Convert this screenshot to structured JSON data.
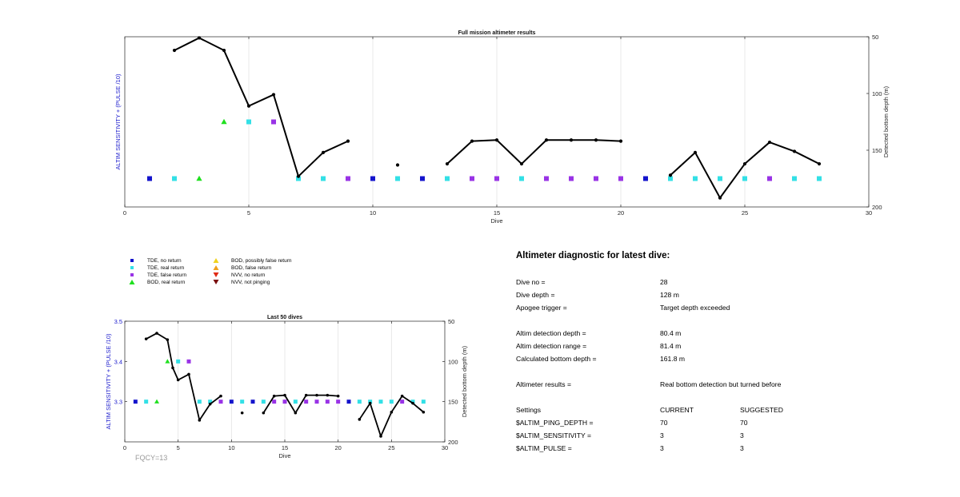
{
  "chart_data": [
    {
      "type": "scatter",
      "title": "Full mission altimeter results",
      "xlabel": "Dive",
      "ylabel_left": "ALTIM SENSITIVITY + (PULSE /10)",
      "ylabel_right": "Detected bottom depth (m)",
      "xlim": [
        0,
        30
      ],
      "xticks": [
        0,
        5,
        10,
        15,
        20,
        25,
        30
      ],
      "ylim_left": [
        3.25,
        3.55
      ],
      "ylim_right": [
        200,
        50
      ],
      "yticks_right": [
        50,
        100,
        150,
        200
      ],
      "grid": "x",
      "left_tick_labels": false,
      "series": [
        {
          "name": "TDE, no return",
          "color": "#1414cc",
          "marker": "square",
          "x": [
            1,
            10,
            12,
            21
          ],
          "y": [
            3.3,
            3.3,
            3.3,
            3.3
          ]
        },
        {
          "name": "TDE, real return",
          "color": "#33e0e6",
          "marker": "square",
          "x": [
            2,
            5,
            7,
            8,
            11,
            13,
            16,
            22,
            23,
            24,
            25,
            27,
            28
          ],
          "y": [
            3.3,
            3.4,
            3.3,
            3.3,
            3.3,
            3.3,
            3.3,
            3.3,
            3.3,
            3.3,
            3.3,
            3.3,
            3.3
          ]
        },
        {
          "name": "TDE, false return",
          "color": "#9933e6",
          "marker": "square",
          "x": [
            6,
            9,
            14,
            15,
            17,
            18,
            19,
            20,
            26
          ],
          "y": [
            3.4,
            3.3,
            3.3,
            3.3,
            3.3,
            3.3,
            3.3,
            3.3,
            3.3
          ]
        },
        {
          "name": "BOD, real return",
          "color": "#1fe01f",
          "marker": "triangle-up",
          "x": [
            3,
            4
          ],
          "y": [
            3.3,
            3.4
          ]
        }
      ],
      "bottom_depth": [
        {
          "x": [
            2,
            3,
            4,
            5,
            6,
            7,
            8,
            9
          ],
          "y": [
            62,
            51,
            62,
            111,
            101,
            173,
            152,
            142
          ]
        },
        {
          "x": [
            11
          ],
          "y": [
            163
          ]
        },
        {
          "x": [
            13,
            14,
            15,
            16,
            17,
            18,
            19,
            20
          ],
          "y": [
            162,
            142,
            141,
            162,
            141,
            141,
            141,
            142
          ]
        },
        {
          "x": [
            22,
            23,
            24,
            25,
            26,
            27,
            28
          ],
          "y": [
            172,
            152,
            192,
            162,
            143,
            151,
            162
          ]
        }
      ]
    },
    {
      "type": "scatter",
      "title": "Last 50 dives",
      "xlabel": "Dive",
      "ylabel_left": "ALTIM SENSITIVITY + (PULSE /10)",
      "ylabel_right": "Detected bottom depth (m)",
      "xlim": [
        0,
        30
      ],
      "xticks": [
        0,
        5,
        10,
        15,
        20,
        25,
        30
      ],
      "ylim_left": [
        3.2,
        3.5
      ],
      "yticks_left": [
        3.3,
        3.4,
        3.5
      ],
      "ylim_right": [
        200,
        50
      ],
      "yticks_right": [
        50,
        100,
        150,
        200
      ],
      "grid": "x",
      "left_tick_labels": true,
      "series": [
        {
          "name": "TDE, no return",
          "color": "#1414cc",
          "marker": "square",
          "x": [
            1,
            10,
            12,
            21
          ],
          "y": [
            3.3,
            3.3,
            3.3,
            3.3
          ]
        },
        {
          "name": "TDE, real return",
          "color": "#33e0e6",
          "marker": "square",
          "x": [
            2,
            5,
            7,
            8,
            11,
            13,
            16,
            22,
            23,
            24,
            25,
            27,
            28
          ],
          "y": [
            3.3,
            3.4,
            3.3,
            3.3,
            3.3,
            3.3,
            3.3,
            3.3,
            3.3,
            3.3,
            3.3,
            3.3,
            3.3
          ]
        },
        {
          "name": "TDE, false return",
          "color": "#9933e6",
          "marker": "square",
          "x": [
            6,
            9,
            14,
            15,
            17,
            18,
            19,
            20,
            26
          ],
          "y": [
            3.4,
            3.3,
            3.3,
            3.3,
            3.3,
            3.3,
            3.3,
            3.3,
            3.3
          ]
        },
        {
          "name": "BOD, real return",
          "color": "#1fe01f",
          "marker": "triangle-up",
          "x": [
            3,
            4
          ],
          "y": [
            3.3,
            3.4
          ]
        }
      ],
      "bottom_depth": [
        {
          "x": [
            2,
            3,
            4,
            4.5,
            5,
            6,
            7,
            8,
            9
          ],
          "y": [
            72,
            65,
            73,
            108,
            123,
            116,
            173,
            153,
            143
          ]
        },
        {
          "x": [
            11
          ],
          "y": [
            164
          ]
        },
        {
          "x": [
            13,
            14,
            15,
            16,
            17,
            18,
            19,
            20
          ],
          "y": [
            164,
            143,
            142,
            164,
            142,
            142,
            142,
            143
          ]
        },
        {
          "x": [
            22,
            23,
            24,
            25,
            26,
            27,
            28
          ],
          "y": [
            172,
            152,
            193,
            163,
            143,
            152,
            163
          ]
        }
      ]
    }
  ],
  "legend": {
    "items": [
      {
        "label": "TDE, no return",
        "color": "#1414cc",
        "marker": "square"
      },
      {
        "label": "TDE, real return",
        "color": "#33e0e6",
        "marker": "square"
      },
      {
        "label": "TDE, false return",
        "color": "#9933e6",
        "marker": "square"
      },
      {
        "label": "BOD, real return",
        "color": "#1fe01f",
        "marker": "triangle-up"
      },
      {
        "label": "BOD, possibly false return",
        "color": "#f0d21e",
        "marker": "triangle-up"
      },
      {
        "label": "BOD, false return",
        "color": "#f0a01e",
        "marker": "triangle-up"
      },
      {
        "label": "NVV, no return",
        "color": "#e02a14",
        "marker": "triangle-down"
      },
      {
        "label": "NVV, not pinging",
        "color": "#7a1010",
        "marker": "triangle-down"
      }
    ]
  },
  "diagnostic": {
    "title": "Altimeter diagnostic for latest dive:",
    "dive_no_label": "Dive no =",
    "dive_no": "28",
    "dive_depth_label": "Dive depth =",
    "dive_depth": "128 m",
    "apogee_label": "Apogee trigger =",
    "apogee": "Target depth exceeded",
    "det_depth_label": "Altim detection depth =",
    "det_depth": "80.4 m",
    "det_range_label": "Altim detection range =",
    "det_range": "81.4 m",
    "bottom_label": "Calculated bottom depth =",
    "bottom": "161.8 m",
    "results_label": "Altimeter results =",
    "results": "Real bottom detection but turned before",
    "settings_label": "Settings",
    "current_label": "CURRENT",
    "suggested_label": "SUGGESTED",
    "ping_label": "$ALTIM_PING_DEPTH =",
    "ping_current": "70",
    "ping_suggested": "70",
    "sens_label": "$ALTIM_SENSITIVITY =",
    "sens_current": "3",
    "sens_suggested": "3",
    "pulse_label": "$ALTIM_PULSE =",
    "pulse_current": "3",
    "pulse_suggested": "3"
  },
  "footer": {
    "fqcy": "FQCY=13"
  }
}
